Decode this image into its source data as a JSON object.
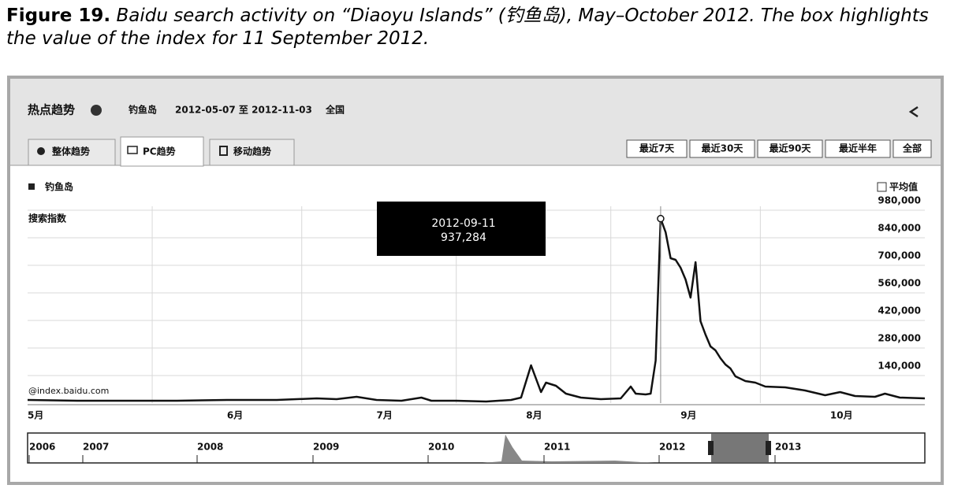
{
  "caption": {
    "label": "Figure 19.",
    "text": "Baidu search activity on “Diaoyu Islands” (钓鱼岛), May–October 2012. The box highlights the value of the index for 11 September 2012."
  },
  "ui": {
    "title": "热点趋势",
    "keyword": "钓鱼岛",
    "range": "2012-05-07 至 2012-11-03",
    "region": "全国",
    "tabs": [
      "整体趋势",
      "PC趋势",
      "移动趋势"
    ],
    "buttons": [
      "最近7天",
      "最近30天",
      "最近90天",
      "最近半年",
      "全部"
    ],
    "avg_label": "平均值",
    "watermark": "@index.baidu.com",
    "timeline": [
      "2006",
      "2007",
      "2008",
      "2009",
      "2010",
      "2011",
      "2012",
      "2013"
    ]
  },
  "chart_data": {
    "type": "line",
    "y_label": "搜索指数",
    "x": [
      0,
      10,
      20,
      30,
      40,
      50,
      58,
      62,
      66,
      70,
      75,
      79,
      81,
      86,
      92,
      97,
      99,
      101,
      103,
      104,
      106,
      108,
      111,
      115,
      119,
      121,
      122,
      124,
      125,
      126,
      127,
      128,
      129,
      130,
      131,
      132,
      133,
      134,
      135,
      136,
      137,
      138,
      139,
      140,
      141,
      142,
      144,
      146,
      148,
      152,
      156,
      160,
      163,
      166,
      170,
      172,
      175,
      180
    ],
    "series": [
      {
        "name": "钓鱼岛",
        "color": "#111111",
        "values": [
          16000,
          12000,
          12000,
          12000,
          16000,
          16000,
          24000,
          20000,
          32000,
          16000,
          12000,
          28000,
          12000,
          12000,
          8000,
          16000,
          28000,
          192000,
          56000,
          104000,
          88000,
          48000,
          28000,
          20000,
          24000,
          84000,
          48000,
          44000,
          48000,
          216000,
          937284,
          868000,
          736000,
          728000,
          688000,
          628000,
          536000,
          716000,
          416000,
          348000,
          288000,
          268000,
          228000,
          196000,
          176000,
          136000,
          112000,
          104000,
          84000,
          80000,
          64000,
          40000,
          56000,
          36000,
          32000,
          48000,
          28000,
          24000
        ]
      }
    ],
    "xlim": [
      0,
      180
    ],
    "xticks": [
      {
        "value": 0,
        "label": "5月"
      },
      {
        "value": 40,
        "label": "6月"
      },
      {
        "value": 70,
        "label": "7月"
      },
      {
        "value": 100,
        "label": "8月"
      },
      {
        "value": 131,
        "label": "9月"
      },
      {
        "value": 161,
        "label": "10月"
      }
    ],
    "xgrid": [
      25,
      55,
      86,
      117,
      147
    ],
    "ylim": [
      0,
      980000
    ],
    "yticks": [
      {
        "value": 140000,
        "label": "140,000"
      },
      {
        "value": 280000,
        "label": "280,000"
      },
      {
        "value": 420000,
        "label": "420,000"
      },
      {
        "value": 560000,
        "label": "560,000"
      },
      {
        "value": 700000,
        "label": "700,000"
      },
      {
        "value": 840000,
        "label": "840,000"
      },
      {
        "value": 980000,
        "label": "980,000"
      }
    ],
    "grid": true,
    "tooltip": {
      "date": "2012-09-11",
      "value": 937284,
      "value_label": "937,284"
    }
  }
}
